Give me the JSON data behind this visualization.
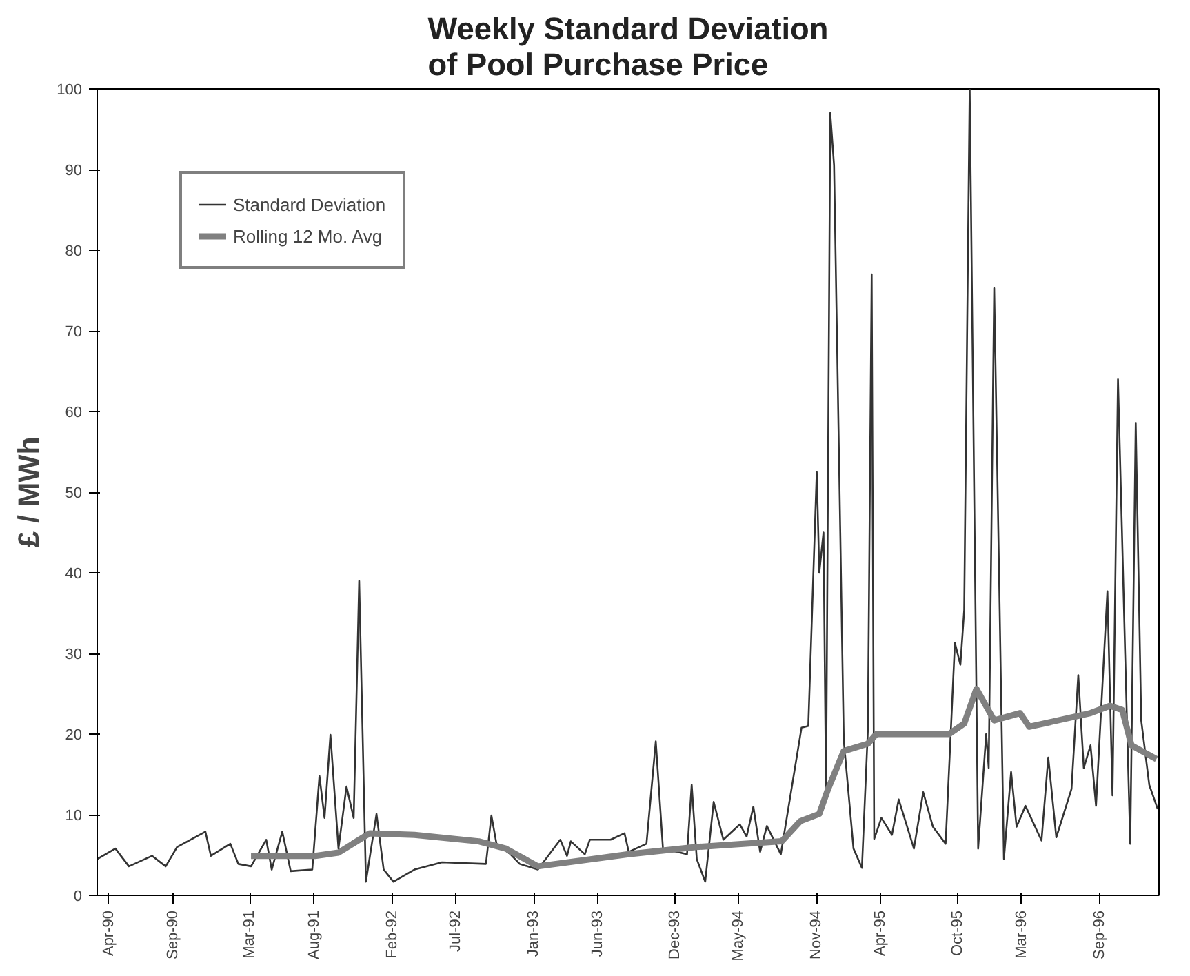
{
  "chart_data": {
    "type": "line",
    "title": "Weekly Standard Deviation\nof Pool Purchase Price",
    "ylabel": "£ / MWh",
    "xlim": [
      "1990-03-05",
      "1997-01-20"
    ],
    "ylim": [
      0,
      100
    ],
    "xticks": [
      {
        "value": "1990-04",
        "label": "Apr-90"
      },
      {
        "value": "1990-09",
        "label": "Sep-90"
      },
      {
        "value": "1991-03",
        "label": "Mar-91"
      },
      {
        "value": "1991-08",
        "label": "Aug-91"
      },
      {
        "value": "1992-02",
        "label": "Feb-92"
      },
      {
        "value": "1992-07",
        "label": "Jul-92"
      },
      {
        "value": "1993-01",
        "label": "Jan-93"
      },
      {
        "value": "1993-06",
        "label": "Jun-93"
      },
      {
        "value": "1993-12",
        "label": "Dec-93"
      },
      {
        "value": "1994-05",
        "label": "May-94"
      },
      {
        "value": "1994-11",
        "label": "Nov-94"
      },
      {
        "value": "1995-04",
        "label": "Apr-95"
      },
      {
        "value": "1995-10",
        "label": "Oct-95"
      },
      {
        "value": "1996-03",
        "label": "Mar-96"
      },
      {
        "value": "1996-09",
        "label": "Sep-96"
      }
    ],
    "yticks": [
      0,
      10,
      20,
      30,
      40,
      50,
      60,
      70,
      80,
      90,
      100
    ],
    "grid": false,
    "legend": "top left",
    "marker": "none",
    "series": [
      {
        "name": "Standard Deviation",
        "color": "#333333",
        "line_style": "solid",
        "x": [
          "1990-03-05",
          "1990-04-17",
          "1990-05-19",
          "1990-07-13",
          "1990-08-14",
          "1990-09-10",
          "1990-11-16",
          "1990-11-29",
          "1991-01-14",
          "1991-02-02",
          "1991-03-04",
          "1991-04-09",
          "1991-04-22",
          "1991-05-17",
          "1991-06-06",
          "1991-07-27",
          "1991-08-13",
          "1991-08-25",
          "1991-09-08",
          "1991-09-27",
          "1991-10-16",
          "1991-11-02",
          "1991-11-15",
          "1991-12-01",
          "1991-12-26",
          "1992-01-12",
          "1992-02-04",
          "1992-03-25",
          "1992-05-29",
          "1992-09-10",
          "1992-09-23",
          "1992-10-05",
          "1992-11-07",
          "1992-11-29",
          "1993-01-11",
          "1993-03-05",
          "1993-03-21",
          "1993-03-30",
          "1993-05-02",
          "1993-05-14",
          "1993-07-02",
          "1993-08-04",
          "1993-08-14",
          "1993-09-25",
          "1993-10-17",
          "1993-11-03",
          "1993-12-30",
          "1994-01-10",
          "1994-01-22",
          "1994-02-11",
          "1994-03-03",
          "1994-03-26",
          "1994-05-04",
          "1994-05-20",
          "1994-06-05",
          "1994-06-21",
          "1994-07-07",
          "1994-08-09",
          "1994-09-27",
          "1994-10-13",
          "1994-11-02",
          "1994-11-08",
          "1994-11-18",
          "1994-11-24",
          "1994-12-04",
          "1994-12-13",
          "1995-01-05",
          "1995-01-28",
          "1995-02-17",
          "1995-03-03",
          "1995-03-12",
          "1995-03-18",
          "1995-04-04",
          "1995-04-29",
          "1995-05-15",
          "1995-06-20",
          "1995-07-12",
          "1995-08-04",
          "1995-09-03",
          "1995-09-25",
          "1995-10-08",
          "1995-10-17",
          "1995-10-30",
          "1995-11-19",
          "1995-12-08",
          "1995-12-14",
          "1995-12-27",
          "1996-01-19",
          "1996-02-05",
          "1996-02-18",
          "1996-03-10",
          "1996-04-17",
          "1996-05-03",
          "1996-05-22",
          "1996-06-27",
          "1996-07-13",
          "1996-07-26",
          "1996-08-11",
          "1996-08-24",
          "1996-09-20",
          "1996-10-02",
          "1996-10-15",
          "1996-11-01",
          "1996-11-13",
          "1996-11-26",
          "1996-12-09",
          "1996-12-28",
          "1997-01-17"
        ],
        "values": [
          4.5,
          5.8,
          3.6,
          4.9,
          3.6,
          6,
          7.9,
          4.9,
          6.4,
          3.9,
          3.6,
          6.9,
          3.2,
          7.9,
          3,
          3.2,
          14.8,
          9.6,
          19.9,
          5.8,
          13.5,
          9.6,
          39,
          1.7,
          10.1,
          3.2,
          1.7,
          3.2,
          4.1,
          3.9,
          9.9,
          6.4,
          5.1,
          3.9,
          3.2,
          6.9,
          4.9,
          6.7,
          5.1,
          6.9,
          6.9,
          7.7,
          5.4,
          6.4,
          19.1,
          5.8,
          5.1,
          13.7,
          4.5,
          1.7,
          11.6,
          6.9,
          8.8,
          7.3,
          11,
          5.4,
          8.6,
          5.1,
          20.8,
          21,
          52.5,
          40,
          45,
          12.8,
          97,
          90.5,
          19.2,
          5.8,
          3.4,
          20.5,
          77,
          7,
          9.6,
          7.5,
          11.9,
          5.8,
          12.8,
          8.5,
          6.4,
          31.3,
          28.6,
          35.4,
          100,
          5.8,
          20,
          15.8,
          75.3,
          4.5,
          15.3,
          8.5,
          11.1,
          6.8,
          17.1,
          7.2,
          13.2,
          27.3,
          15.8,
          18.6,
          11.1,
          37.7,
          12.4,
          64,
          29.9,
          6.4,
          58.6,
          21.7,
          13.7,
          10.7
        ]
      },
      {
        "name": "Rolling 12 Mo. Avg",
        "color": "#808080",
        "line_style": "solid",
        "x": [
          "1991-03-04",
          "1991-08-03",
          "1991-09-27",
          "1991-12-10",
          "1992-03-25",
          "1992-08-24",
          "1992-10-27",
          "1993-01-11",
          "1993-08-14",
          "1994-01-22",
          "1994-08-11",
          "1994-09-24",
          "1994-11-08",
          "1994-11-29",
          "1995-01-05",
          "1995-03-03",
          "1995-03-23",
          "1995-09-11",
          "1995-10-17",
          "1995-11-15",
          "1995-12-27",
          "1996-02-26",
          "1996-03-19",
          "1996-08-11",
          "1996-09-26",
          "1996-10-25",
          "1996-11-16",
          "1997-01-14"
        ],
        "values": [
          4.9,
          4.9,
          5.3,
          7.7,
          7.5,
          6.7,
          5.8,
          3.6,
          5.1,
          6,
          6.7,
          9.2,
          10.1,
          13.2,
          17.9,
          18.8,
          20,
          20,
          21.3,
          25.6,
          21.7,
          22.6,
          20.9,
          22.6,
          23.5,
          23,
          18.6,
          16.9
        ]
      }
    ]
  }
}
